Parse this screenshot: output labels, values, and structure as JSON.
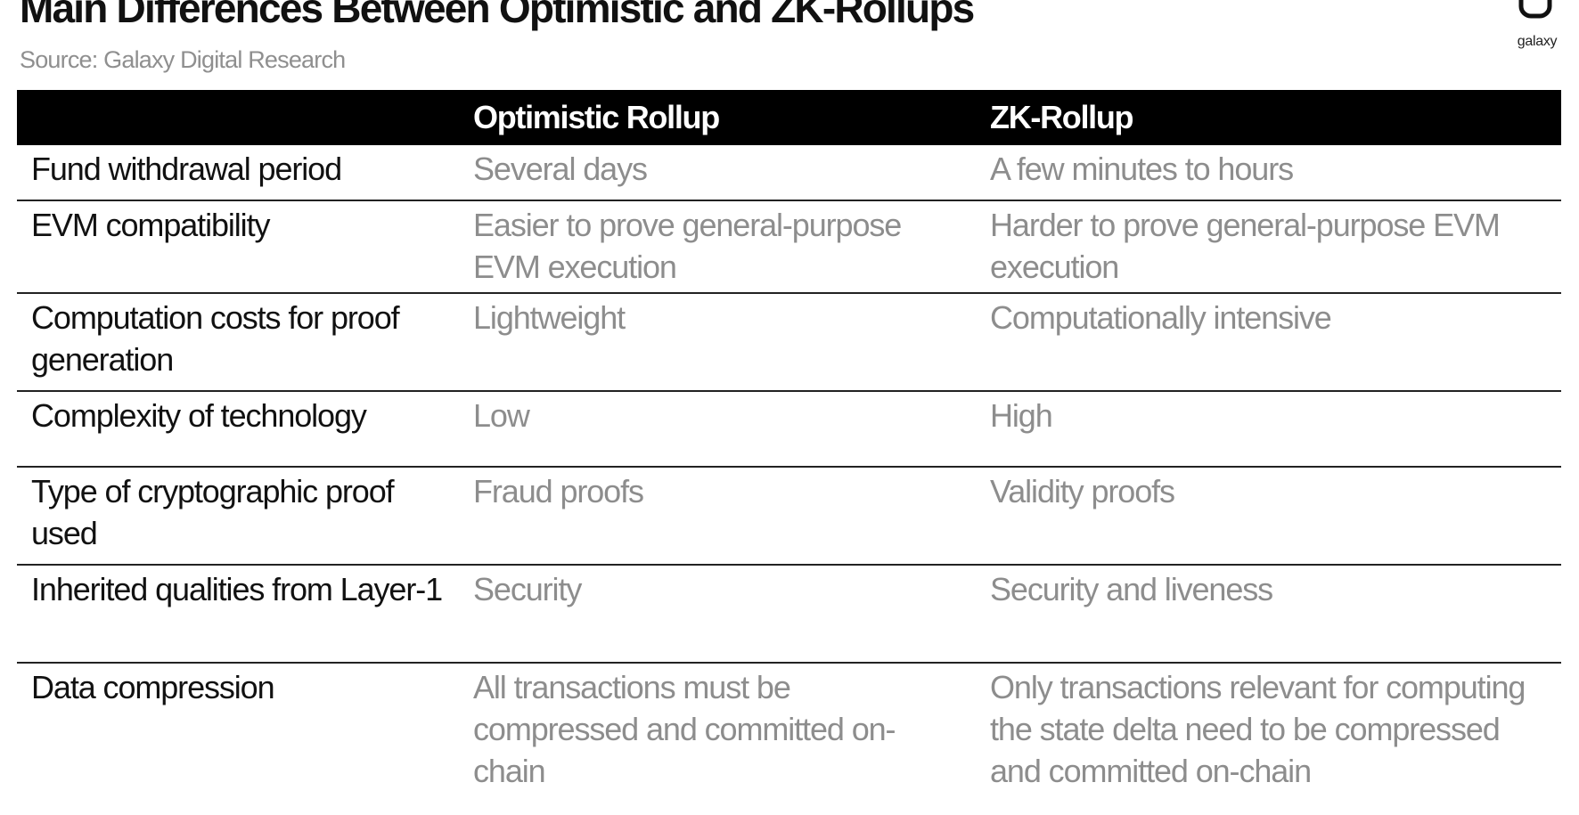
{
  "header": {
    "title": "Main Differences Between Optimistic and ZK-Rollups",
    "source": "Source: Galaxy Digital Research",
    "logo_text": "galaxy",
    "logo_icon": "galaxy-logo-mark"
  },
  "table": {
    "columns": [
      "",
      "Optimistic Rollup",
      "ZK-Rollup"
    ],
    "rows": [
      {
        "label": "Fund withdrawal period",
        "optimistic": "Several days",
        "zk": "A few minutes to hours"
      },
      {
        "label": "EVM compatibility",
        "optimistic": "Easier to prove general-purpose EVM execution",
        "zk": "Harder to prove general-purpose EVM execution"
      },
      {
        "label": "Computation costs for proof generation",
        "optimistic": "Lightweight",
        "zk": "Computationally intensive"
      },
      {
        "label": "Complexity of technology",
        "optimistic": "Low",
        "zk": "High"
      },
      {
        "label": "Type of cryptographic proof used",
        "optimistic": "Fraud proofs",
        "zk": "Validity proofs"
      },
      {
        "label": "Inherited qualities from Layer-1",
        "optimistic": "Security",
        "zk": "Security and liveness"
      },
      {
        "label": "Data compression",
        "optimistic": "All transactions must be compressed and committed on-chain",
        "zk": "Only transactions relevant for computing the state delta need to be compressed and committed on-chain"
      }
    ]
  }
}
